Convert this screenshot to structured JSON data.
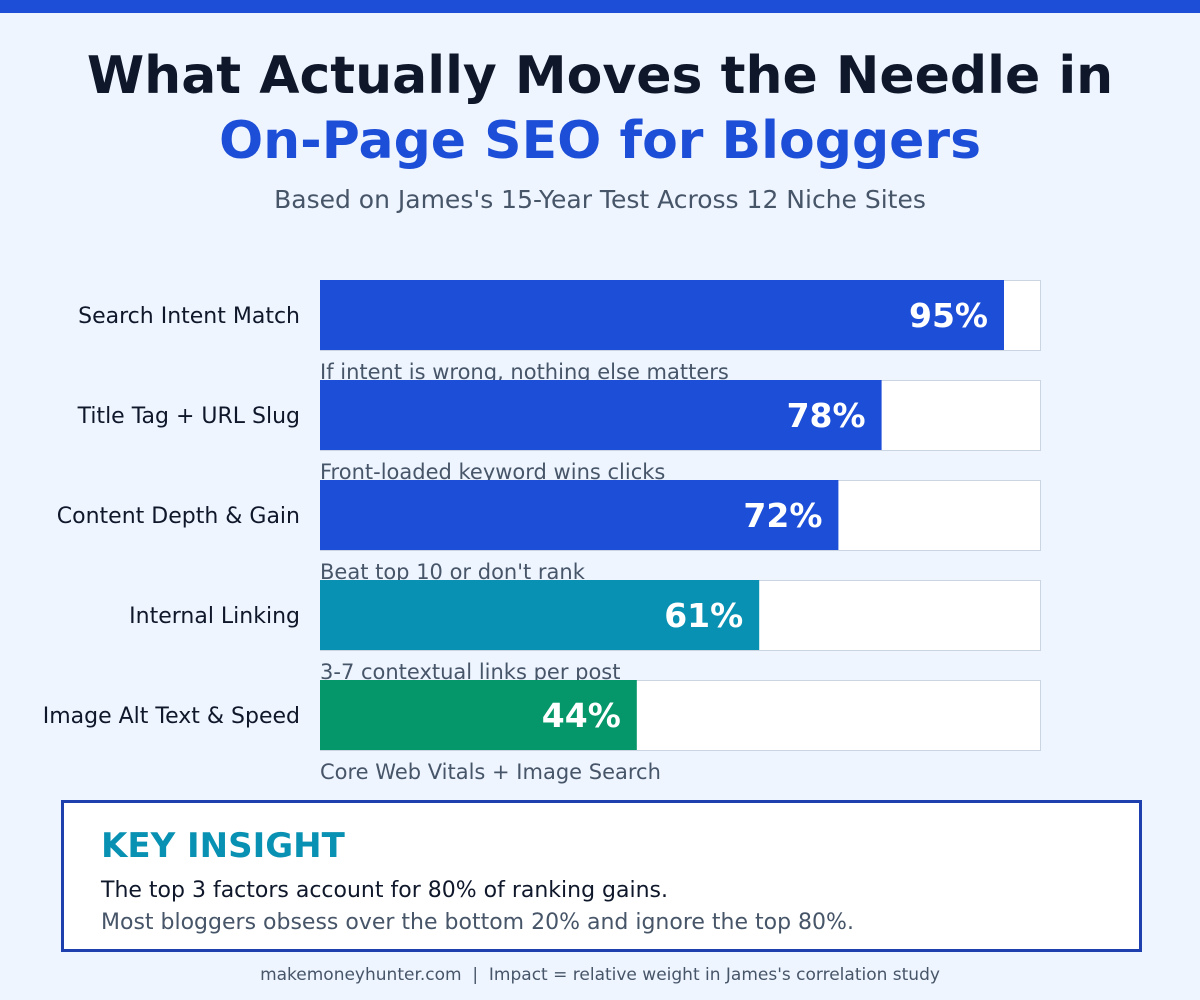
{
  "header": {
    "title_line1": "What Actually Moves the Needle in",
    "title_line2": "On-Page SEO for Bloggers",
    "subtitle": "Based on James's 15-Year Test Across 12 Niche Sites"
  },
  "chart_data": {
    "type": "bar",
    "orientation": "horizontal",
    "categories": [
      "Search Intent Match",
      "Title Tag + URL Slug",
      "Content Depth & Gain",
      "Internal Linking",
      "Image Alt Text & Speed"
    ],
    "values": [
      95,
      78,
      72,
      61,
      44
    ],
    "value_labels": [
      "95%",
      "78%",
      "72%",
      "61%",
      "44%"
    ],
    "notes": [
      "If intent is wrong, nothing else matters",
      "Front-loaded keyword wins clicks",
      "Beat top 10 or don't rank",
      "3-7 contextual links per post",
      "Core Web Vitals + Image Search"
    ],
    "colors": [
      "#1d4ed8",
      "#1d4ed8",
      "#1d4ed8",
      "#0891b2",
      "#059669"
    ],
    "xlim": [
      0,
      100
    ],
    "grid": false
  },
  "insight": {
    "title": "KEY INSIGHT",
    "line1": "The top 3 factors account for 80% of ranking gains.",
    "line2": "Most bloggers obsess over the bottom 20% and ignore the top 80%."
  },
  "footer": {
    "text": "makemoneyhunter.com  |  Impact = relative weight in James's correlation study"
  },
  "colors": {
    "accent": "#1d4ed8",
    "teal": "#0891b2",
    "green": "#059669",
    "background": "#eef5ff",
    "dark_text": "#0f172a",
    "muted_text": "#475569"
  }
}
